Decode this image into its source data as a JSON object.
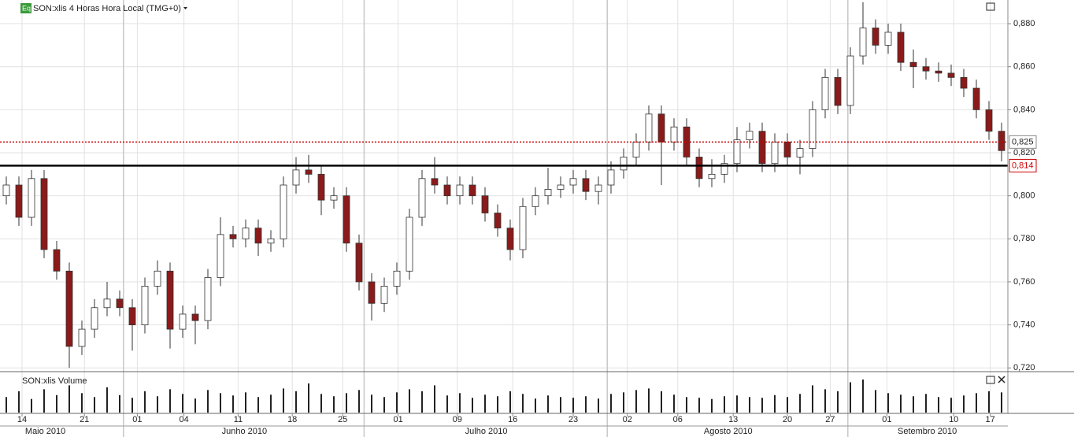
{
  "chart_data": {
    "type": "candlestick",
    "title": "SON:xlis 4 Horas Hora Local (TMG+0)",
    "volume_title": "SON:xlis Volume",
    "open": [
      0.8,
      0.805,
      0.79,
      0.808,
      0.775,
      0.765,
      0.73,
      0.738,
      0.748,
      0.752,
      0.748,
      0.74,
      0.758,
      0.765,
      0.738,
      0.745,
      0.742,
      0.762,
      0.782,
      0.78,
      0.785,
      0.778,
      0.78,
      0.805,
      0.812,
      0.81,
      0.798,
      0.8,
      0.778,
      0.76,
      0.75,
      0.758,
      0.765,
      0.79,
      0.808,
      0.805,
      0.8,
      0.805,
      0.8,
      0.792,
      0.785,
      0.775,
      0.795,
      0.8,
      0.803,
      0.805,
      0.808,
      0.802,
      0.805,
      0.812,
      0.818,
      0.825,
      0.838,
      0.825,
      0.832,
      0.818,
      0.808,
      0.81,
      0.815,
      0.826,
      0.83,
      0.815,
      0.825,
      0.818,
      0.822,
      0.84,
      0.855,
      0.842,
      0.865,
      0.878,
      0.87,
      0.876,
      0.862,
      0.86,
      0.858,
      0.857,
      0.855,
      0.85,
      0.84,
      0.83
    ],
    "high": [
      0.809,
      0.809,
      0.812,
      0.812,
      0.779,
      0.769,
      0.742,
      0.752,
      0.76,
      0.756,
      0.752,
      0.762,
      0.77,
      0.769,
      0.749,
      0.749,
      0.766,
      0.79,
      0.786,
      0.789,
      0.789,
      0.784,
      0.809,
      0.818,
      0.819,
      0.814,
      0.804,
      0.804,
      0.782,
      0.764,
      0.762,
      0.769,
      0.794,
      0.812,
      0.818,
      0.809,
      0.809,
      0.809,
      0.804,
      0.796,
      0.789,
      0.799,
      0.804,
      0.813,
      0.809,
      0.812,
      0.812,
      0.809,
      0.816,
      0.822,
      0.829,
      0.842,
      0.842,
      0.836,
      0.836,
      0.822,
      0.817,
      0.819,
      0.832,
      0.834,
      0.834,
      0.829,
      0.829,
      0.826,
      0.844,
      0.859,
      0.859,
      0.869,
      0.89,
      0.882,
      0.88,
      0.88,
      0.868,
      0.864,
      0.862,
      0.861,
      0.859,
      0.854,
      0.844,
      0.834
    ],
    "low": [
      0.796,
      0.786,
      0.786,
      0.771,
      0.761,
      0.72,
      0.726,
      0.734,
      0.744,
      0.744,
      0.728,
      0.736,
      0.754,
      0.729,
      0.734,
      0.731,
      0.738,
      0.758,
      0.776,
      0.776,
      0.772,
      0.774,
      0.776,
      0.801,
      0.806,
      0.791,
      0.794,
      0.774,
      0.756,
      0.742,
      0.746,
      0.754,
      0.761,
      0.786,
      0.801,
      0.796,
      0.796,
      0.796,
      0.788,
      0.781,
      0.77,
      0.771,
      0.791,
      0.796,
      0.799,
      0.801,
      0.798,
      0.796,
      0.801,
      0.808,
      0.814,
      0.821,
      0.805,
      0.821,
      0.814,
      0.804,
      0.804,
      0.806,
      0.811,
      0.822,
      0.811,
      0.811,
      0.814,
      0.81,
      0.818,
      0.836,
      0.838,
      0.838,
      0.861,
      0.866,
      0.866,
      0.858,
      0.85,
      0.854,
      0.853,
      0.851,
      0.846,
      0.836,
      0.826,
      0.816
    ],
    "close": [
      0.805,
      0.79,
      0.808,
      0.775,
      0.765,
      0.73,
      0.738,
      0.748,
      0.752,
      0.748,
      0.74,
      0.758,
      0.765,
      0.738,
      0.745,
      0.742,
      0.762,
      0.782,
      0.78,
      0.785,
      0.778,
      0.78,
      0.805,
      0.812,
      0.81,
      0.798,
      0.8,
      0.778,
      0.76,
      0.75,
      0.758,
      0.765,
      0.79,
      0.808,
      0.805,
      0.8,
      0.805,
      0.8,
      0.792,
      0.785,
      0.775,
      0.795,
      0.8,
      0.803,
      0.805,
      0.808,
      0.802,
      0.805,
      0.812,
      0.818,
      0.825,
      0.838,
      0.825,
      0.832,
      0.818,
      0.808,
      0.81,
      0.815,
      0.826,
      0.83,
      0.815,
      0.825,
      0.818,
      0.822,
      0.84,
      0.855,
      0.842,
      0.865,
      0.878,
      0.87,
      0.876,
      0.862,
      0.86,
      0.858,
      0.857,
      0.855,
      0.85,
      0.84,
      0.83,
      0.821
    ],
    "volume": [
      40,
      55,
      35,
      60,
      45,
      70,
      50,
      40,
      65,
      45,
      38,
      55,
      42,
      60,
      48,
      36,
      58,
      50,
      44,
      52,
      40,
      46,
      62,
      55,
      75,
      48,
      42,
      50,
      58,
      46,
      40,
      52,
      60,
      55,
      70,
      44,
      50,
      38,
      46,
      42,
      55,
      48,
      36,
      44,
      40,
      38,
      42,
      36,
      48,
      52,
      58,
      62,
      55,
      46,
      40,
      38,
      35,
      42,
      44,
      40,
      38,
      45,
      40,
      48,
      70,
      60,
      55,
      78,
      85,
      58,
      50,
      46,
      42,
      48,
      40,
      38,
      44,
      50,
      55,
      52
    ],
    "upcolor": "#ffffff",
    "downcolor": "#8b1a1a",
    "xlim": [
      -0.5,
      79.5
    ],
    "xticks": [
      {
        "value": 1.25,
        "label": "14"
      },
      {
        "value": 6.2,
        "label": "21"
      },
      {
        "value": 10.4,
        "label": "01"
      },
      {
        "value": 14.1,
        "label": "04"
      },
      {
        "value": 18.4,
        "label": "11"
      },
      {
        "value": 22.7,
        "label": "18"
      },
      {
        "value": 26.7,
        "label": "25"
      },
      {
        "value": 31.1,
        "label": "01"
      },
      {
        "value": 35.8,
        "label": "09"
      },
      {
        "value": 40.2,
        "label": "16"
      },
      {
        "value": 45,
        "label": "23"
      },
      {
        "value": 49.3,
        "label": "02"
      },
      {
        "value": 53.3,
        "label": "06"
      },
      {
        "value": 57.7,
        "label": "13"
      },
      {
        "value": 62,
        "label": "20"
      },
      {
        "value": 65.4,
        "label": "27"
      },
      {
        "value": 69.9,
        "label": "01"
      },
      {
        "value": 75.2,
        "label": "10"
      },
      {
        "value": 78.1,
        "label": "17"
      }
    ],
    "month_ticks": [
      {
        "value": 3.1,
        "label": "Maio 2010"
      },
      {
        "value": 18.9,
        "label": "Junho 2010"
      },
      {
        "value": 38.1,
        "label": "Julho 2010"
      },
      {
        "value": 57.3,
        "label": "Agosto 2010"
      },
      {
        "value": 73.1,
        "label": "Setembro 2010"
      }
    ],
    "month_bounds": [
      9.3,
      28.4,
      47.7,
      66.8
    ],
    "ylim": [
      0.719,
      0.891
    ],
    "yticks": [
      {
        "value": 0.72,
        "label": "0,720"
      },
      {
        "value": 0.74,
        "label": "0,740"
      },
      {
        "value": 0.76,
        "label": "0,760"
      },
      {
        "value": 0.78,
        "label": "0,780"
      },
      {
        "value": 0.8,
        "label": "0,800"
      },
      {
        "value": 0.82,
        "label": "0,820"
      },
      {
        "value": 0.84,
        "label": "0,840"
      },
      {
        "value": 0.86,
        "label": "0,860"
      },
      {
        "value": 0.88,
        "label": "0,880"
      }
    ],
    "hlines": [
      {
        "value": 0.825,
        "label": "0,825",
        "color": "#cc0000",
        "dotted": true
      },
      {
        "value": 0.814,
        "label": "0,814",
        "color": "#000000",
        "dotted": false
      }
    ],
    "grid": true
  }
}
